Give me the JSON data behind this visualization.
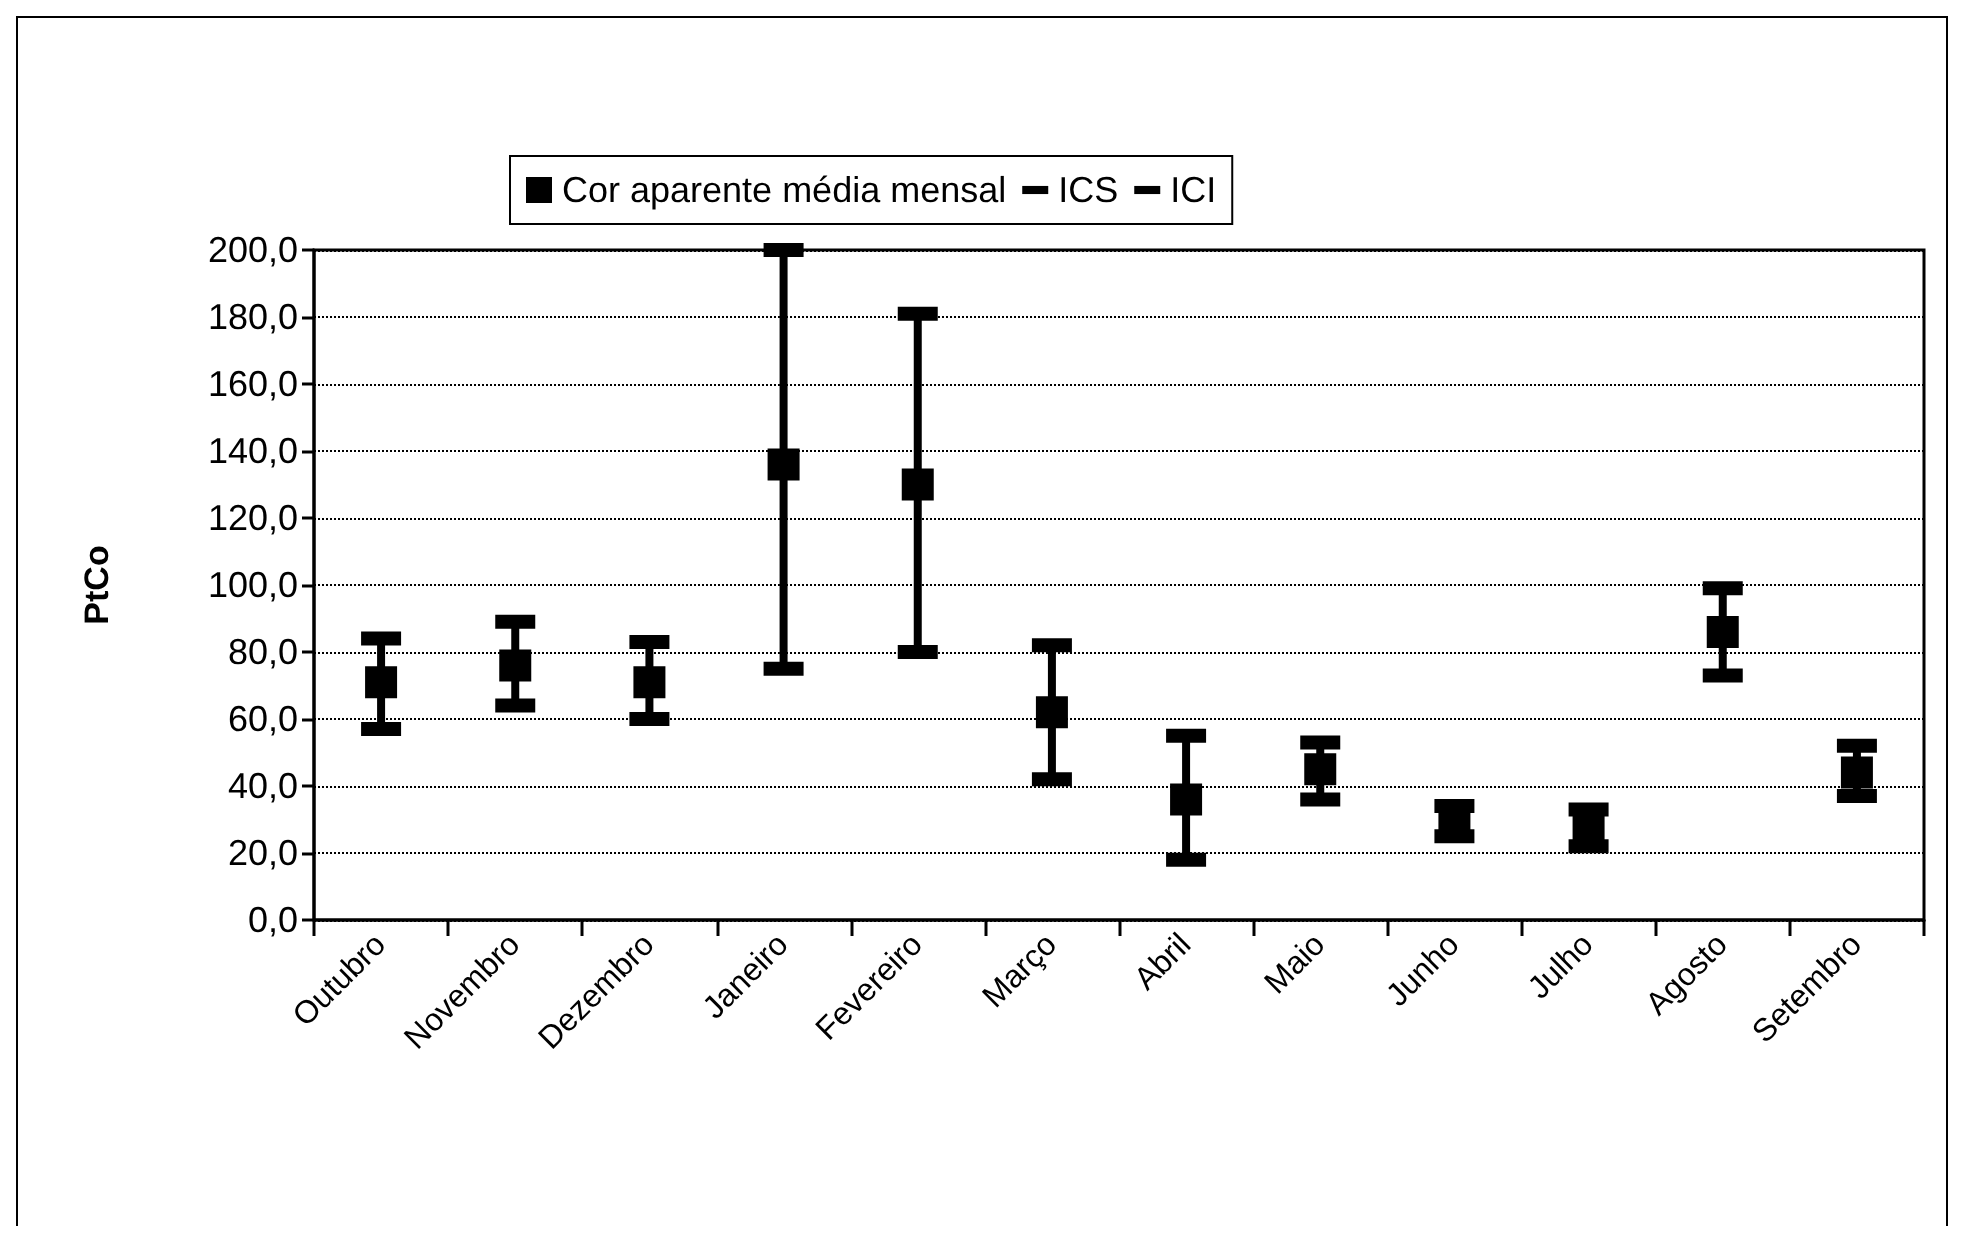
{
  "chart_data": {
    "type": "scatter",
    "ylabel": "PtCo",
    "categories": [
      "Outubro",
      "Novembro",
      "Dezembro",
      "Janeiro",
      "Fevereiro",
      "Março",
      "Abril",
      "Maio",
      "Junho",
      "Julho",
      "Agosto",
      "Setembro"
    ],
    "series": [
      {
        "name": "Cor aparente média mensal",
        "color": "#000000",
        "marker": "square",
        "values": [
          71,
          76,
          71,
          136,
          130,
          62,
          36,
          45,
          30,
          27,
          86,
          44
        ]
      },
      {
        "name": "ICS",
        "color": "#000000",
        "values": [
          84,
          89,
          83,
          200,
          181,
          82,
          55,
          53,
          34,
          33,
          99,
          52
        ]
      },
      {
        "name": "ICI",
        "color": "#000000",
        "values": [
          57,
          64,
          60,
          75,
          80,
          42,
          18,
          36,
          25,
          22,
          73,
          37
        ]
      }
    ],
    "ylim": [
      0,
      200
    ],
    "yticks": [
      {
        "value": 0,
        "label": "0,0"
      },
      {
        "value": 20,
        "label": "20,0"
      },
      {
        "value": 40,
        "label": "40,0"
      },
      {
        "value": 60,
        "label": "60,0"
      },
      {
        "value": 80,
        "label": "80,0"
      },
      {
        "value": 100,
        "label": "100,0"
      },
      {
        "value": 120,
        "label": "120,0"
      },
      {
        "value": 140,
        "label": "140,0"
      },
      {
        "value": 160,
        "label": "160,0"
      },
      {
        "value": 180,
        "label": "180,0"
      },
      {
        "value": 200,
        "label": "200,0"
      }
    ],
    "grid": "y",
    "legend": "top"
  }
}
